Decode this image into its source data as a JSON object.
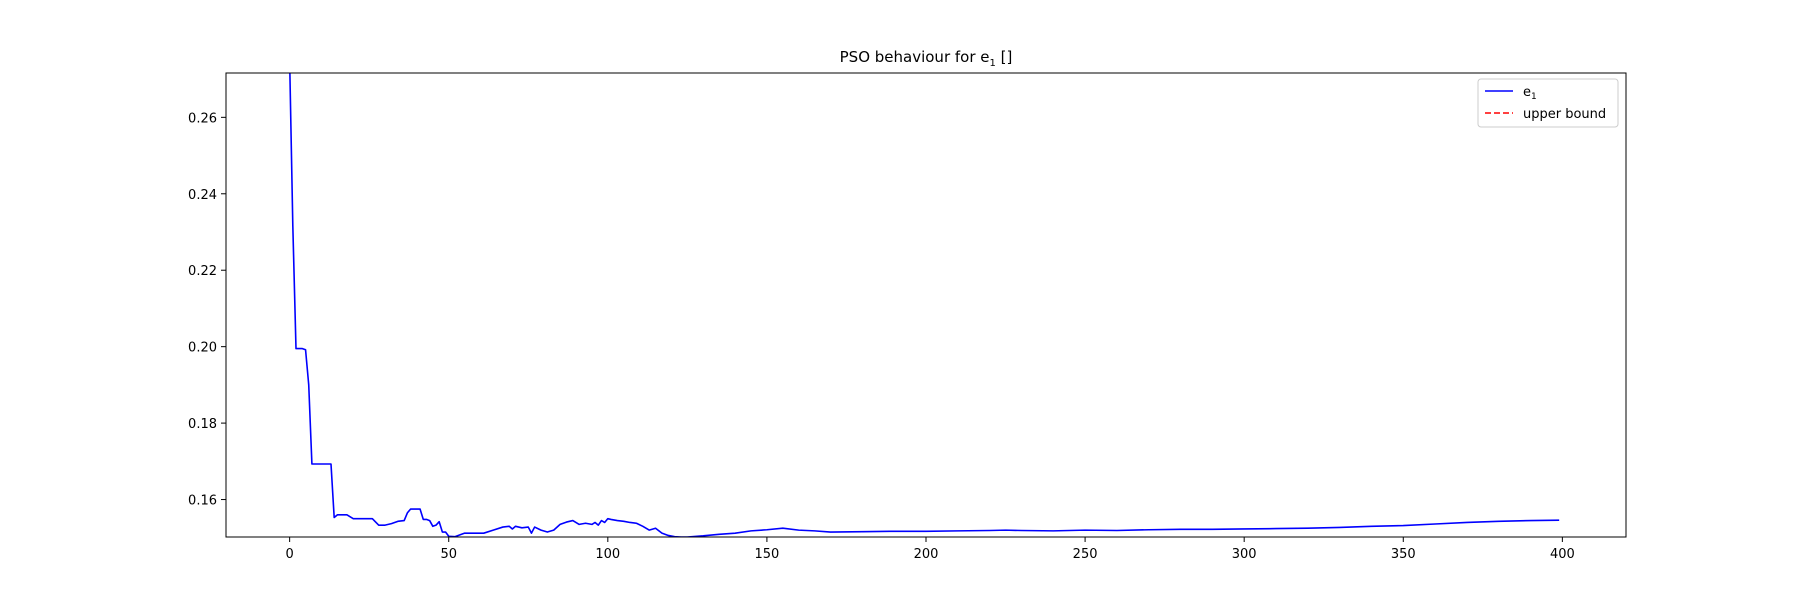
{
  "chart_data": {
    "type": "line",
    "title": "PSO behaviour for e",
    "title_subscript": "1",
    "title_suffix": " []",
    "xlabel": "",
    "ylabel": "",
    "xlim": [
      -20,
      420
    ],
    "ylim": [
      0.1502,
      0.2716
    ],
    "xticks": [
      0,
      50,
      100,
      150,
      200,
      250,
      300,
      350,
      400
    ],
    "yticks": [
      0.16,
      0.18,
      0.2,
      0.22,
      0.24,
      0.26
    ],
    "ytick_labels": [
      "0.16",
      "0.18",
      "0.20",
      "0.22",
      "0.24",
      "0.26"
    ],
    "grid": false,
    "legend_position": "top-right",
    "series": [
      {
        "name": "e",
        "name_subscript": "1",
        "color": "#0000ff",
        "linestyle": "solid",
        "x": [
          0,
          1,
          2,
          3,
          4,
          5,
          6,
          7,
          8,
          10,
          12,
          13,
          14,
          15,
          18,
          20,
          22,
          24,
          26,
          28,
          30,
          32,
          34,
          36,
          37,
          38,
          39,
          40,
          41,
          42,
          43,
          44,
          45,
          46,
          47,
          48,
          49,
          50,
          52,
          55,
          58,
          61,
          64,
          67,
          69,
          70,
          71,
          73,
          75,
          76,
          77,
          79,
          81,
          83,
          85,
          87,
          89,
          91,
          93,
          95,
          96,
          97,
          98,
          99,
          100,
          101,
          103,
          105,
          107,
          109,
          111,
          113,
          115,
          117,
          119,
          121,
          123,
          125,
          130,
          135,
          140,
          145,
          150,
          155,
          160,
          165,
          170,
          180,
          190,
          200,
          210,
          220,
          225,
          230,
          240,
          250,
          260,
          270,
          280,
          290,
          300,
          310,
          320,
          330,
          340,
          350,
          360,
          370,
          380,
          390,
          399
        ],
        "y": [
          0.275,
          0.2316,
          0.1995,
          0.1995,
          0.1995,
          0.1992,
          0.19,
          0.1693,
          0.1693,
          0.1693,
          0.1693,
          0.1693,
          0.1553,
          0.156,
          0.156,
          0.155,
          0.155,
          0.155,
          0.155,
          0.1533,
          0.1533,
          0.1537,
          0.1543,
          0.1545,
          0.1565,
          0.1575,
          0.1575,
          0.1575,
          0.1575,
          0.1548,
          0.1548,
          0.1545,
          0.153,
          0.1533,
          0.1542,
          0.1515,
          0.1515,
          0.1504,
          0.1503,
          0.1512,
          0.1512,
          0.1512,
          0.152,
          0.1528,
          0.153,
          0.1523,
          0.153,
          0.1526,
          0.1528,
          0.1512,
          0.1528,
          0.152,
          0.1515,
          0.152,
          0.1535,
          0.1541,
          0.1545,
          0.1535,
          0.1538,
          0.1535,
          0.154,
          0.1533,
          0.1545,
          0.154,
          0.155,
          0.1548,
          0.1545,
          0.1543,
          0.154,
          0.1538,
          0.153,
          0.152,
          0.1525,
          0.1512,
          0.1506,
          0.1503,
          0.1502,
          0.1502,
          0.1505,
          0.1509,
          0.1512,
          0.1518,
          0.1521,
          0.1525,
          0.152,
          0.1518,
          0.1515,
          0.1516,
          0.1517,
          0.1517,
          0.1518,
          0.1519,
          0.152,
          0.1519,
          0.1518,
          0.152,
          0.1519,
          0.1521,
          0.1522,
          0.1522,
          0.1523,
          0.1524,
          0.1525,
          0.1527,
          0.153,
          0.1532,
          0.1536,
          0.154,
          0.1543,
          0.1545,
          0.1546
        ]
      },
      {
        "name": "upper bound",
        "color": "#ff0000",
        "linestyle": "dashed",
        "x": [],
        "y": []
      }
    ]
  }
}
